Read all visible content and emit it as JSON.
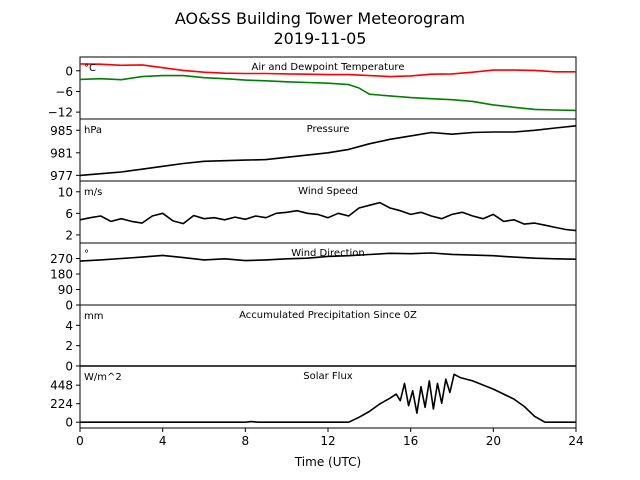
{
  "figure": {
    "title_line1": "AO&SS Building Tower Meteorogram",
    "title_line2": "2019-11-05",
    "xlabel": "Time (UTC)",
    "xticks": [
      "0",
      "4",
      "8",
      "12",
      "16",
      "20",
      "24"
    ]
  },
  "chart_data": [
    {
      "id": "temp",
      "type": "line",
      "title": "Air and Dewpoint Temperature",
      "unit": "°C",
      "ylim": [
        -14,
        4
      ],
      "yticks": [
        "0",
        "−6",
        "−12"
      ],
      "ytick_values": [
        0,
        -6,
        -12
      ],
      "series": [
        {
          "color": "#ff0000",
          "values": [
            [
              0,
              2.0
            ],
            [
              1,
              1.9
            ],
            [
              2,
              1.6
            ],
            [
              3,
              1.7
            ],
            [
              4,
              0.9
            ],
            [
              5,
              0.1
            ],
            [
              6,
              -0.4
            ],
            [
              7,
              -0.7
            ],
            [
              8,
              -0.8
            ],
            [
              9,
              -0.8
            ],
            [
              10,
              -0.9
            ],
            [
              11,
              -1.0
            ],
            [
              12,
              -1.1
            ],
            [
              13,
              -1.1
            ],
            [
              14,
              -1.4
            ],
            [
              15,
              -1.7
            ],
            [
              16,
              -1.5
            ],
            [
              17,
              -1.0
            ],
            [
              18,
              -0.9
            ],
            [
              19,
              -0.4
            ],
            [
              20,
              0.2
            ],
            [
              21,
              0.2
            ],
            [
              22,
              0.1
            ],
            [
              23,
              -0.3
            ],
            [
              24,
              -0.3
            ]
          ]
        },
        {
          "color": "#008000",
          "values": [
            [
              0,
              -2.5
            ],
            [
              1,
              -2.3
            ],
            [
              2,
              -2.6
            ],
            [
              3,
              -1.7
            ],
            [
              4,
              -1.4
            ],
            [
              5,
              -1.4
            ],
            [
              6,
              -2.0
            ],
            [
              7,
              -2.3
            ],
            [
              8,
              -2.7
            ],
            [
              9,
              -2.9
            ],
            [
              10,
              -3.2
            ],
            [
              11,
              -3.4
            ],
            [
              12,
              -3.6
            ],
            [
              13,
              -4.0
            ],
            [
              13.5,
              -5.0
            ],
            [
              14,
              -6.8
            ],
            [
              15,
              -7.3
            ],
            [
              16,
              -7.8
            ],
            [
              17,
              -8.1
            ],
            [
              18,
              -8.4
            ],
            [
              19,
              -8.9
            ],
            [
              20,
              -9.9
            ],
            [
              21,
              -10.6
            ],
            [
              22,
              -11.2
            ],
            [
              23,
              -11.4
            ],
            [
              24,
              -11.5
            ]
          ]
        }
      ]
    },
    {
      "id": "pressure",
      "type": "line",
      "title": "Pressure",
      "unit": "hPa",
      "ylim": [
        976,
        987
      ],
      "yticks": [
        "977",
        "981",
        "985"
      ],
      "ytick_values": [
        977,
        981,
        985
      ],
      "series": [
        {
          "color": "#000000",
          "values": [
            [
              0,
              977.0
            ],
            [
              1,
              977.3
            ],
            [
              2,
              977.6
            ],
            [
              3,
              978.1
            ],
            [
              4,
              978.6
            ],
            [
              5,
              979.1
            ],
            [
              6,
              979.5
            ],
            [
              7,
              979.6
            ],
            [
              8,
              979.7
            ],
            [
              9,
              979.8
            ],
            [
              10,
              980.2
            ],
            [
              11,
              980.6
            ],
            [
              12,
              981.0
            ],
            [
              13,
              981.6
            ],
            [
              14,
              982.6
            ],
            [
              15,
              983.4
            ],
            [
              16,
              984.0
            ],
            [
              17,
              984.6
            ],
            [
              18,
              984.3
            ],
            [
              19,
              984.6
            ],
            [
              20,
              984.7
            ],
            [
              21,
              984.7
            ],
            [
              22,
              985.0
            ],
            [
              23,
              985.4
            ],
            [
              24,
              985.8
            ]
          ]
        }
      ]
    },
    {
      "id": "wind_speed",
      "type": "line",
      "title": "Wind Speed",
      "unit": "m/s",
      "ylim": [
        0.5,
        12
      ],
      "yticks": [
        "2",
        "6",
        "10"
      ],
      "ytick_values": [
        2,
        6,
        10
      ],
      "series": [
        {
          "color": "#000000",
          "values": [
            [
              0,
              4.8
            ],
            [
              0.5,
              5.2
            ],
            [
              1,
              5.5
            ],
            [
              1.5,
              4.5
            ],
            [
              2,
              5.0
            ],
            [
              2.5,
              4.5
            ],
            [
              3,
              4.2
            ],
            [
              3.5,
              5.5
            ],
            [
              4,
              6.0
            ],
            [
              4.5,
              4.6
            ],
            [
              5,
              4.1
            ],
            [
              5.5,
              5.6
            ],
            [
              6,
              5.0
            ],
            [
              6.5,
              5.2
            ],
            [
              7,
              4.8
            ],
            [
              7.5,
              5.3
            ],
            [
              8,
              4.9
            ],
            [
              8.5,
              5.5
            ],
            [
              9,
              5.2
            ],
            [
              9.5,
              6.0
            ],
            [
              10,
              6.2
            ],
            [
              10.5,
              6.5
            ],
            [
              11,
              6.0
            ],
            [
              11.5,
              5.8
            ],
            [
              12,
              5.2
            ],
            [
              12.5,
              6.0
            ],
            [
              13,
              5.5
            ],
            [
              13.5,
              7.0
            ],
            [
              14,
              7.5
            ],
            [
              14.5,
              8.0
            ],
            [
              15,
              7.0
            ],
            [
              15.5,
              6.5
            ],
            [
              16,
              5.8
            ],
            [
              16.5,
              6.2
            ],
            [
              17,
              5.5
            ],
            [
              17.5,
              5.0
            ],
            [
              18,
              5.8
            ],
            [
              18.5,
              6.2
            ],
            [
              19,
              5.5
            ],
            [
              19.5,
              5.0
            ],
            [
              20,
              5.8
            ],
            [
              20.5,
              4.5
            ],
            [
              21,
              4.8
            ],
            [
              21.5,
              4.0
            ],
            [
              22,
              4.2
            ],
            [
              22.5,
              3.8
            ],
            [
              23,
              3.4
            ],
            [
              23.5,
              3.0
            ],
            [
              24,
              2.8
            ]
          ]
        }
      ]
    },
    {
      "id": "wind_direction",
      "type": "line",
      "title": "Wind Direction",
      "unit": "°",
      "ylim": [
        0,
        360
      ],
      "yticks": [
        "0",
        "90",
        "180",
        "270"
      ],
      "ytick_values": [
        0,
        90,
        180,
        270
      ],
      "series": [
        {
          "color": "#000000",
          "values": [
            [
              0,
              255
            ],
            [
              1,
              262
            ],
            [
              2,
              270
            ],
            [
              3,
              278
            ],
            [
              4,
              288
            ],
            [
              5,
              275
            ],
            [
              6,
              262
            ],
            [
              7,
              268
            ],
            [
              8,
              258
            ],
            [
              9,
              262
            ],
            [
              10,
              268
            ],
            [
              11,
              272
            ],
            [
              12,
              282
            ],
            [
              13,
              286
            ],
            [
              14,
              293
            ],
            [
              15,
              300
            ],
            [
              16,
              298
            ],
            [
              17,
              302
            ],
            [
              18,
              294
            ],
            [
              19,
              290
            ],
            [
              20,
              286
            ],
            [
              21,
              278
            ],
            [
              22,
              272
            ],
            [
              23,
              268
            ],
            [
              24,
              266
            ]
          ]
        }
      ]
    },
    {
      "id": "precip",
      "type": "line",
      "title": "Accumulated Precipitation Since 0Z",
      "unit": "mm",
      "ylim": [
        0,
        6
      ],
      "yticks": [
        "0",
        "2",
        "4"
      ],
      "ytick_values": [
        0,
        2,
        4
      ],
      "series": [
        {
          "color": "#000000",
          "values": [
            [
              0,
              0
            ],
            [
              24,
              0
            ]
          ]
        }
      ]
    },
    {
      "id": "solar",
      "type": "line",
      "title": "Solar Flux",
      "unit": "W/m^2",
      "ylim": [
        -70,
        680
      ],
      "yticks": [
        "0",
        "224",
        "448"
      ],
      "ytick_values": [
        0,
        224,
        448
      ],
      "series": [
        {
          "color": "#000000",
          "values": [
            [
              0,
              0
            ],
            [
              8.0,
              0
            ],
            [
              8.3,
              8
            ],
            [
              8.6,
              0
            ],
            [
              13.0,
              0
            ],
            [
              13.5,
              60
            ],
            [
              14,
              130
            ],
            [
              14.5,
              220
            ],
            [
              15,
              290
            ],
            [
              15.3,
              340
            ],
            [
              15.5,
              260
            ],
            [
              15.7,
              470
            ],
            [
              15.9,
              200
            ],
            [
              16.1,
              380
            ],
            [
              16.3,
              110
            ],
            [
              16.5,
              430
            ],
            [
              16.7,
              180
            ],
            [
              16.9,
              500
            ],
            [
              17.1,
              160
            ],
            [
              17.3,
              470
            ],
            [
              17.5,
              230
            ],
            [
              17.7,
              520
            ],
            [
              17.9,
              360
            ],
            [
              18.1,
              580
            ],
            [
              18.4,
              540
            ],
            [
              19,
              500
            ],
            [
              20,
              400
            ],
            [
              21,
              280
            ],
            [
              21.5,
              190
            ],
            [
              22,
              70
            ],
            [
              22.5,
              0
            ],
            [
              24,
              0
            ]
          ]
        }
      ]
    }
  ]
}
